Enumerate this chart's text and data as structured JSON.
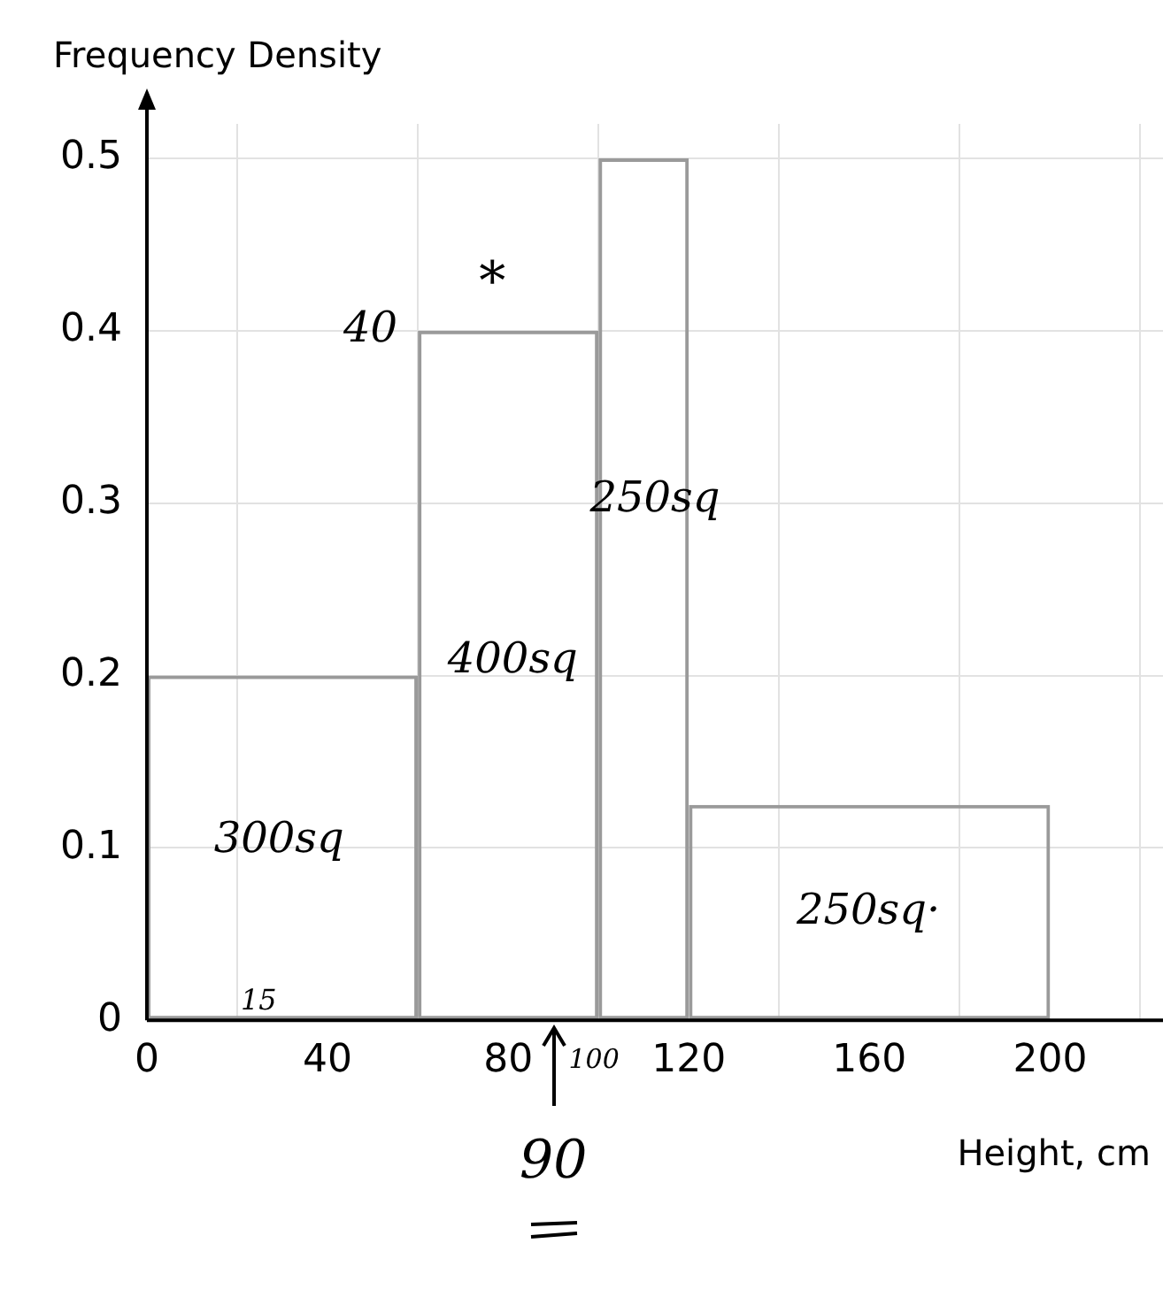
{
  "chart_data": {
    "type": "histogram",
    "xlabel": "Height, cm",
    "ylabel": "Frequency Density",
    "bins": [
      0,
      60,
      100,
      120,
      200
    ],
    "values": [
      0.2,
      0.4,
      0.5,
      0.125
    ],
    "color": "#9a9a9a",
    "xlim": [
      0,
      225
    ],
    "xticks": [
      0,
      40,
      80,
      120,
      160,
      200
    ],
    "ylim": [
      0,
      0.52
    ],
    "yticks": [
      0,
      0.1,
      0.2,
      0.3,
      0.4,
      0.5
    ],
    "grid": true,
    "annotations": [
      "40",
      "*",
      "250sq",
      "400sq",
      "300sq",
      "250sq·",
      "15",
      "100",
      "90"
    ]
  }
}
